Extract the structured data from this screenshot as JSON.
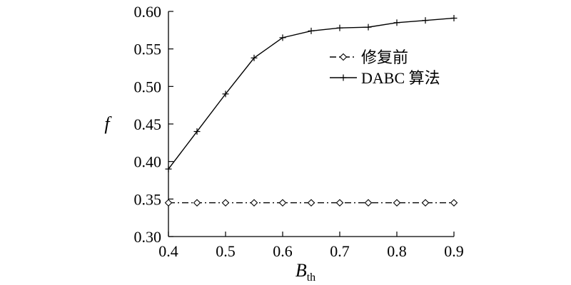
{
  "chart_data": {
    "type": "line",
    "xlabel": "B",
    "xlabel_sub": "th",
    "ylabel": "f",
    "xlim": [
      0.4,
      0.9
    ],
    "ylim": [
      0.3,
      0.6
    ],
    "xticks": [
      "0.4",
      "0.5",
      "0.6",
      "0.7",
      "0.8",
      "0.9"
    ],
    "yticks": [
      "0.30",
      "0.35",
      "0.40",
      "0.45",
      "0.50",
      "0.55",
      "0.60"
    ],
    "legend_position": "upper-right",
    "grid": false,
    "series": [
      {
        "name": "修复前",
        "style": "dash-dot",
        "marker": "diamond",
        "x": [
          0.4,
          0.45,
          0.5,
          0.55,
          0.6,
          0.65,
          0.7,
          0.75,
          0.8,
          0.85,
          0.9
        ],
        "y": [
          0.345,
          0.345,
          0.345,
          0.345,
          0.345,
          0.345,
          0.345,
          0.345,
          0.345,
          0.345,
          0.345
        ]
      },
      {
        "name": "DABC 算法",
        "style": "solid",
        "marker": "plus",
        "x": [
          0.4,
          0.45,
          0.5,
          0.55,
          0.6,
          0.65,
          0.7,
          0.75,
          0.8,
          0.85,
          0.9
        ],
        "y": [
          0.39,
          0.44,
          0.49,
          0.538,
          0.565,
          0.574,
          0.578,
          0.579,
          0.585,
          0.588,
          0.591
        ]
      }
    ]
  }
}
